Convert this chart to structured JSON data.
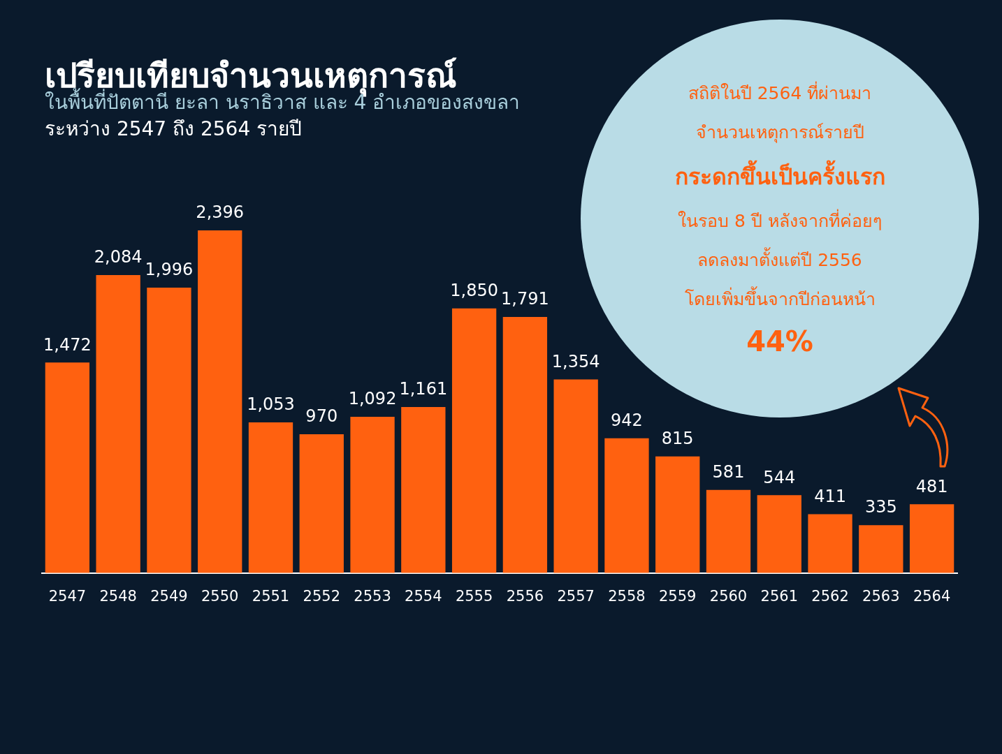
{
  "chart_data": {
    "type": "bar",
    "title": "เปรียบเทียบจำนวนเหตุการณ์",
    "subtitle": "ในพื้นที่ปัตตานี ยะลา นราธิวาส และ 4 อำเภอของสงขลา\nระหว่าง 2547 ถึง 2564 รายปี",
    "categories": [
      "2547",
      "2548",
      "2549",
      "2550",
      "2551",
      "2552",
      "2553",
      "2554",
      "2555",
      "2556",
      "2557",
      "2558",
      "2559",
      "2560",
      "2561",
      "2562",
      "2563",
      "2564"
    ],
    "values": [
      1472,
      2084,
      1996,
      2396,
      1053,
      970,
      1092,
      1161,
      1850,
      1791,
      1354,
      942,
      815,
      581,
      544,
      411,
      335,
      481
    ],
    "color": "#ff6110",
    "value_labels": [
      "1,472",
      "2,084",
      "1,996",
      "2,396",
      "1,053",
      "970",
      "1,092",
      "1,161",
      "1,850",
      "1,791",
      "1,354",
      "942",
      "815",
      "581",
      "544",
      "411",
      "335",
      "481"
    ],
    "annotations": [
      "สถิติในปี 2564 ที่ผ่านมา",
      "จำนวนเหตุการณ์รายปี",
      "กระดกขึ้นเป็นครั้งแรก",
      "ในรอบ 8 ปี หลังจากที่ค่อยๆ",
      "ลดลงมาตั้งแต่ปี 2556",
      "โดยเพิ่มขึ้นจากปีก่อนหน้า",
      "44%"
    ]
  }
}
